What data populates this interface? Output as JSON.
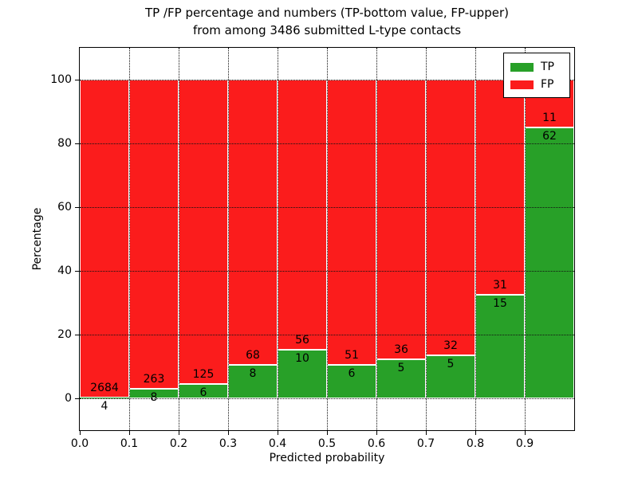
{
  "chart_data": {
    "type": "bar",
    "stacked": true,
    "title": "TP /FP percentage and numbers (TP-bottom value, FP-upper)\nfrom among 3486 submitted L-type contacts",
    "title_lines": [
      "TP /FP percentage and numbers (TP-bottom value, FP-upper)",
      "from among 3486 submitted L-type contacts"
    ],
    "total_submitted_contacts": 3486,
    "xlabel": "Predicted probability",
    "ylabel": "Percentage",
    "xlim": [
      0.0,
      1.0
    ],
    "ylim": [
      -10,
      110
    ],
    "grid": true,
    "x_ticks": [
      "0.0",
      "0.1",
      "0.2",
      "0.3",
      "0.4",
      "0.5",
      "0.6",
      "0.7",
      "0.8",
      "0.9"
    ],
    "y_ticks": [
      "0",
      "20",
      "40",
      "60",
      "80",
      "100"
    ],
    "legend_position": "upper right",
    "series": [
      {
        "name": "TP",
        "color": "#28a028"
      },
      {
        "name": "FP",
        "color": "#fb1c1c"
      }
    ],
    "bins": [
      {
        "range": [
          0.0,
          0.1
        ],
        "tp": 4,
        "fp": 2684
      },
      {
        "range": [
          0.1,
          0.2
        ],
        "tp": 8,
        "fp": 263
      },
      {
        "range": [
          0.2,
          0.3
        ],
        "tp": 6,
        "fp": 125
      },
      {
        "range": [
          0.3,
          0.4
        ],
        "tp": 8,
        "fp": 68
      },
      {
        "range": [
          0.4,
          0.5
        ],
        "tp": 10,
        "fp": 56
      },
      {
        "range": [
          0.5,
          0.6
        ],
        "tp": 6,
        "fp": 51
      },
      {
        "range": [
          0.6,
          0.7
        ],
        "tp": 5,
        "fp": 36
      },
      {
        "range": [
          0.7,
          0.8
        ],
        "tp": 5,
        "fp": 32
      },
      {
        "range": [
          0.8,
          0.9
        ],
        "tp": 15,
        "fp": 31
      },
      {
        "range": [
          0.9,
          1.0
        ],
        "tp": 62,
        "fp": 11
      }
    ]
  }
}
